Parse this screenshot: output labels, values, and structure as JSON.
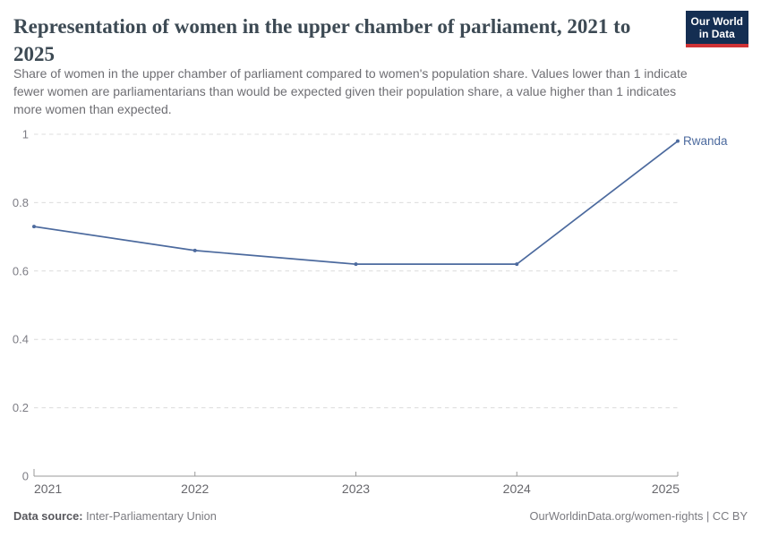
{
  "header": {
    "title": "Representation of women in the upper chamber of parliament, 2021 to 2025",
    "subtitle": "Share of women in the upper chamber of parliament compared to women's population share. Values lower than 1 indicate fewer women are parliamentarians than would be expected given their population share, a value higher than 1 indicates more women than expected.",
    "logo": {
      "line1": "Our World",
      "line2": "in Data",
      "bg_color": "#142e52",
      "accent_color": "#cf3235"
    }
  },
  "chart_data": {
    "type": "line",
    "series": [
      {
        "name": "Rwanda",
        "x": [
          2021,
          2022,
          2023,
          2024,
          2025
        ],
        "values": [
          0.73,
          0.66,
          0.62,
          0.62,
          0.98
        ],
        "color": "#4c6a9e"
      }
    ],
    "x_ticks": [
      "2021",
      "2022",
      "2023",
      "2024",
      "2025"
    ],
    "y_ticks": [
      "0",
      "0.2",
      "0.4",
      "0.6",
      "0.8",
      "1"
    ],
    "xlim": [
      2021,
      2025
    ],
    "ylim": [
      0,
      1
    ],
    "grid": "horizontal-dashed",
    "legend_position": "end-of-line-label",
    "end_label": "Rwanda",
    "title": "Representation of women in the upper chamber of parliament, 2021 to 2025",
    "xlabel": "",
    "ylabel": ""
  },
  "footer": {
    "source_label": "Data source:",
    "source_value": " Inter-Parliamentary Union",
    "right_text": "OurWorldinData.org/women-rights | CC BY"
  }
}
